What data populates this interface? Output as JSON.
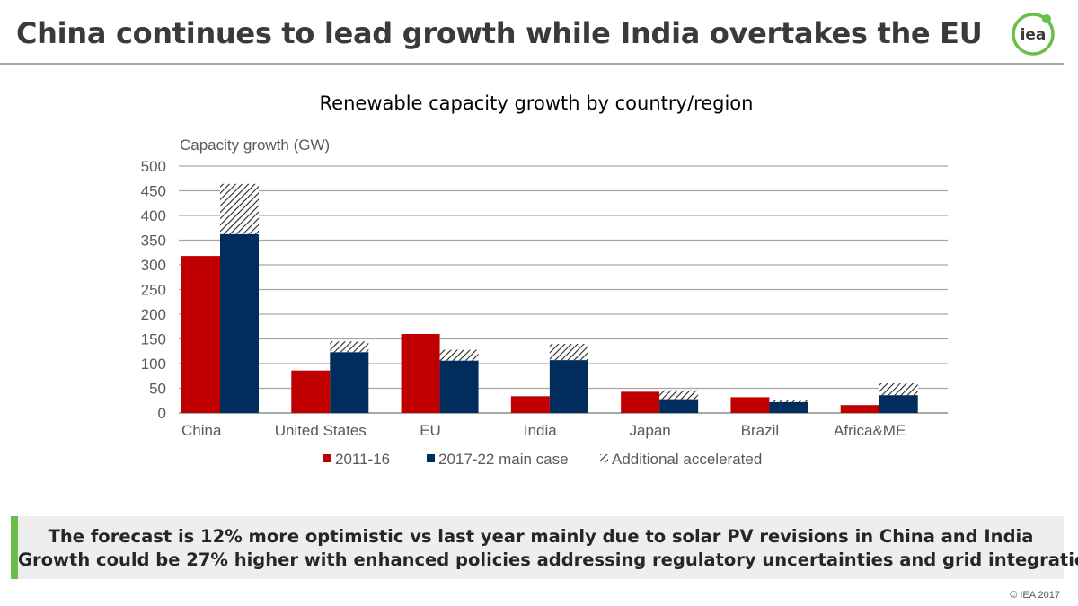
{
  "header": {
    "title": "China continues to lead growth while India overtakes the EU",
    "logo_text": "iea"
  },
  "chart_data": {
    "type": "bar",
    "title": "Renewable capacity growth by country/region",
    "ylabel": "Capacity growth (GW)",
    "xlabel": "",
    "ylim": [
      0,
      500
    ],
    "yticks": [
      0,
      50,
      100,
      150,
      200,
      250,
      300,
      350,
      400,
      450,
      500
    ],
    "grid": true,
    "legend_position": "bottom",
    "categories": [
      "China",
      "United States",
      "EU",
      "India",
      "Japan",
      "Brazil",
      "Africa&ME"
    ],
    "series": [
      {
        "name": "2011-16",
        "values": [
          318,
          86,
          160,
          34,
          43,
          32,
          16
        ],
        "color": "#c00000"
      },
      {
        "name": "2017-22 main case",
        "values": [
          362,
          123,
          106,
          107,
          28,
          22,
          36
        ],
        "color": "#002d5c"
      },
      {
        "name": "Additional accelerated",
        "values": [
          102,
          22,
          22,
          33,
          18,
          4,
          24
        ],
        "pattern": "diagonal-hatch",
        "stacked_on": "2017-22 main case"
      }
    ]
  },
  "callout": {
    "line1": "The forecast is 12% more optimistic vs last year mainly due to solar PV revisions in China and India",
    "line2": "Growth could be 27% higher with enhanced policies addressing regulatory uncertainties and grid integration",
    "accent_color": "#6abf4b"
  },
  "footer": {
    "copyright": "© IEA 2017"
  }
}
